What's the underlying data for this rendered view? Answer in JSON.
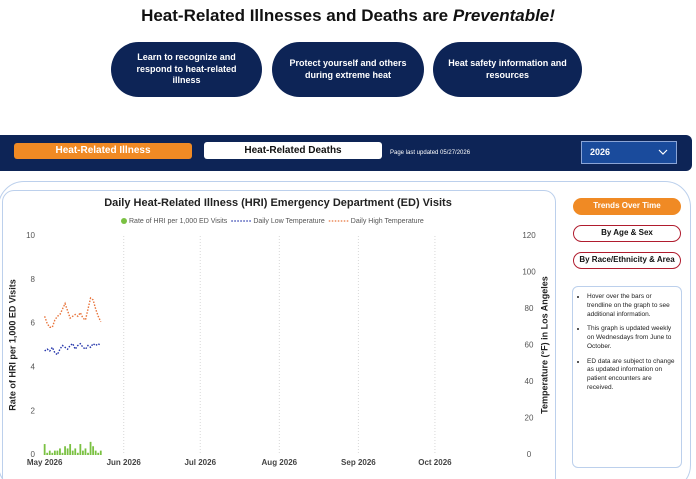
{
  "header": {
    "title_prefix": "Heat-Related Illnesses and Deaths are",
    "title_emphasis": "Preventable!"
  },
  "links": [
    "Learn to recognize and respond to heat-related illness",
    "Protect yourself and others during extreme heat",
    "Heat safety information and resources"
  ],
  "nav": {
    "tabs": [
      "Heat-Related Illness",
      "Heat-Related Deaths"
    ],
    "updated": "Page last updated 05/27/2026",
    "year": "2026"
  },
  "side_buttons": [
    "Trends Over Time",
    "By Age & Sex",
    "By Race/Ethnicity & Area"
  ],
  "notes": [
    "Hover over the bars or trendline on the graph to see additional information.",
    "This graph is updated weekly on Wednesdays from June to October.",
    "ED data are subject to change as updated information on patient encounters are received."
  ],
  "chart_data": {
    "type": "bar",
    "title": "Daily Heat-Related Illness (HRI) Emergency Department (ED) Visits",
    "y_label": "Rate of HRI per 1,000 ED Visits",
    "y2_label": "Temperature (°F) in Los Angeles",
    "x": [
      0,
      1,
      2,
      3,
      4,
      5,
      6,
      7,
      8,
      9,
      10,
      11,
      12,
      13,
      14,
      15,
      16,
      17,
      18,
      19,
      20,
      21,
      22
    ],
    "xlim": [
      -3,
      184
    ],
    "xticks": [
      {
        "value": 0,
        "label": "May 2026"
      },
      {
        "value": 31,
        "label": "Jun 2026"
      },
      {
        "value": 61,
        "label": "Jul 2026"
      },
      {
        "value": 92,
        "label": "Aug 2026"
      },
      {
        "value": 123,
        "label": "Sep 2026"
      },
      {
        "value": 153,
        "label": "Oct 2026"
      }
    ],
    "ylim": [
      0,
      10
    ],
    "yticks": [
      0,
      2,
      4,
      6,
      8,
      10
    ],
    "y2lim": [
      0,
      120
    ],
    "y2ticks": [
      0,
      20,
      40,
      60,
      80,
      100,
      120
    ],
    "grid": true,
    "series": [
      {
        "name": "Rate of HRI per 1,000 ED Visits",
        "type": "bar",
        "color": "#7ac142",
        "values": [
          0.5,
          0.1,
          0.2,
          0.1,
          0.2,
          0.2,
          0.3,
          0.1,
          0.4,
          0.3,
          0.5,
          0.2,
          0.3,
          0.1,
          0.5,
          0.2,
          0.3,
          0.1,
          0.6,
          0.4,
          0.2,
          0.1,
          0.2
        ]
      },
      {
        "name": "Daily Low Temperature",
        "type": "line",
        "axis": "y2",
        "color": "#2233aa",
        "values": [
          57,
          58,
          57,
          59,
          56,
          55,
          58,
          60,
          59,
          58,
          60,
          61,
          58,
          60,
          61,
          59,
          58,
          60,
          59,
          61,
          60,
          61,
          60
        ]
      },
      {
        "name": "Daily High Temperature",
        "type": "line",
        "axis": "y2",
        "color": "#e8743b",
        "values": [
          76,
          72,
          70,
          70,
          74,
          76,
          77,
          80,
          83,
          79,
          75,
          76,
          77,
          76,
          78,
          75,
          74,
          80,
          86,
          85,
          80,
          76,
          73
        ]
      }
    ]
  }
}
